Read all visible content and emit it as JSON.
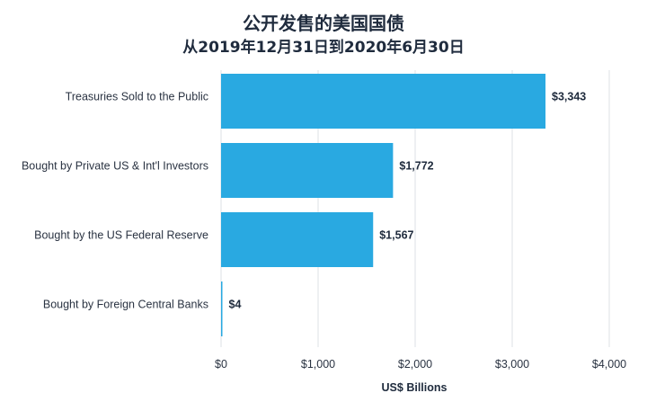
{
  "chart_data": {
    "type": "bar",
    "orientation": "horizontal",
    "title": "公开发售的美国国债",
    "subtitle": "从2019年12月31日到2020年6月30日",
    "categories": [
      "Treasuries Sold to the Public",
      "Bought by Private US & Int'l Investors",
      "Bought by the US Federal Reserve",
      "Bought by Foreign Central Banks"
    ],
    "values": [
      3343,
      1772,
      1567,
      4
    ],
    "value_labels": [
      "$3,343",
      "$1,772",
      "$1,567",
      "$4"
    ],
    "xlabel": "US$ Billions",
    "ylabel": "",
    "xlim": [
      0,
      4000
    ],
    "x_ticks": [
      0,
      1000,
      2000,
      3000,
      4000
    ],
    "x_tick_labels": [
      "$0",
      "$1,000",
      "$2,000",
      "$3,000",
      "$4,000"
    ],
    "grid": true,
    "legend": "none",
    "colors": {
      "bar": "#29a9e1",
      "grid": "#dde1e6",
      "text": "#1f2b3d"
    }
  }
}
